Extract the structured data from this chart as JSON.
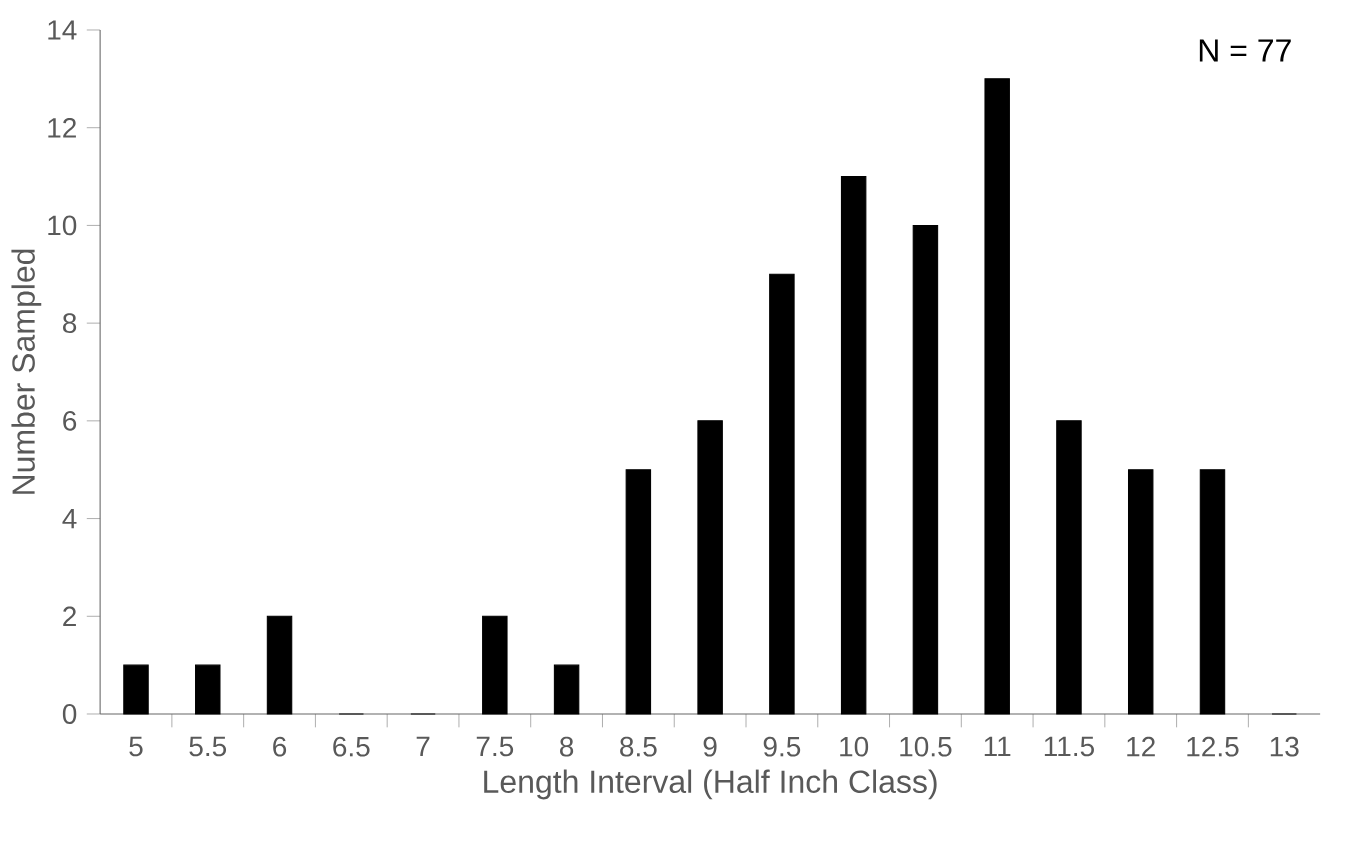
{
  "chart_data": {
    "type": "bar",
    "xlabel": "Length Interval (Half Inch Class)",
    "ylabel": "Number Sampled",
    "annotations": [
      "N = 77"
    ],
    "categories": [
      "5",
      "5.5",
      "6",
      "6.5",
      "7",
      "7.5",
      "8",
      "8.5",
      "9",
      "9.5",
      "10",
      "10.5",
      "11",
      "11.5",
      "12",
      "12.5",
      "13"
    ],
    "values": [
      1,
      1,
      2,
      0,
      0,
      2,
      1,
      5,
      6,
      9,
      11,
      10,
      13,
      6,
      5,
      5,
      0
    ],
    "color": "#000000",
    "ylim": [
      0,
      14
    ],
    "yticks": [
      0,
      2,
      4,
      6,
      8,
      10,
      12,
      14
    ]
  }
}
